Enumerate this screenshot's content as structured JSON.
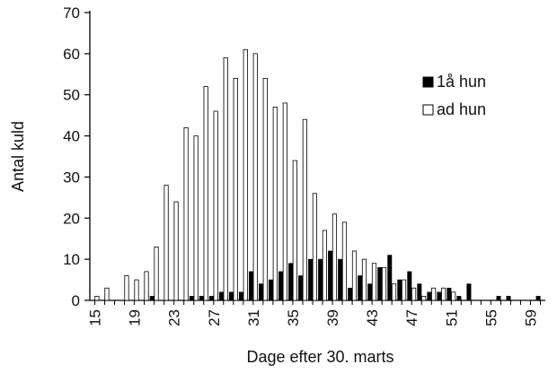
{
  "chart_data": {
    "type": "bar",
    "xlabel": "Dage efter 30. marts",
    "ylabel": "Antal kuld",
    "x": [
      15,
      16,
      17,
      18,
      19,
      20,
      21,
      22,
      23,
      24,
      25,
      26,
      27,
      28,
      29,
      30,
      31,
      32,
      33,
      34,
      35,
      36,
      37,
      38,
      39,
      40,
      41,
      42,
      43,
      44,
      45,
      46,
      47,
      48,
      49,
      50,
      51,
      52,
      53,
      54,
      55,
      56,
      57,
      58,
      59,
      60
    ],
    "x_tick_labels": [
      "15",
      "19",
      "23",
      "27",
      "31",
      "35",
      "39",
      "43",
      "47",
      "51",
      "55",
      "59"
    ],
    "y_ticks": [
      0,
      10,
      20,
      30,
      40,
      50,
      60,
      70
    ],
    "ylim": [
      0,
      70
    ],
    "legend_position": "right",
    "series": [
      {
        "name": "1å hun",
        "fill": "#000000",
        "values": [
          0,
          0,
          0,
          0,
          0,
          0,
          1,
          0,
          0,
          0,
          1,
          1,
          1,
          2,
          2,
          2,
          7,
          4,
          5,
          7,
          9,
          6,
          10,
          10,
          12,
          10,
          3,
          6,
          4,
          8,
          11,
          5,
          7,
          4,
          2,
          2,
          3,
          1,
          4,
          0,
          0,
          1,
          1,
          0,
          0,
          1
        ]
      },
      {
        "name": "ad hun",
        "fill": "#ffffff",
        "values": [
          1,
          3,
          0,
          6,
          5,
          7,
          13,
          28,
          24,
          42,
          40,
          52,
          46,
          59,
          54,
          61,
          60,
          54,
          47,
          48,
          34,
          44,
          26,
          17,
          21,
          19,
          12,
          10,
          9,
          8,
          4,
          5,
          3,
          1,
          3,
          3,
          2,
          0,
          0,
          0,
          0,
          0,
          0,
          0,
          0,
          0
        ]
      }
    ]
  }
}
